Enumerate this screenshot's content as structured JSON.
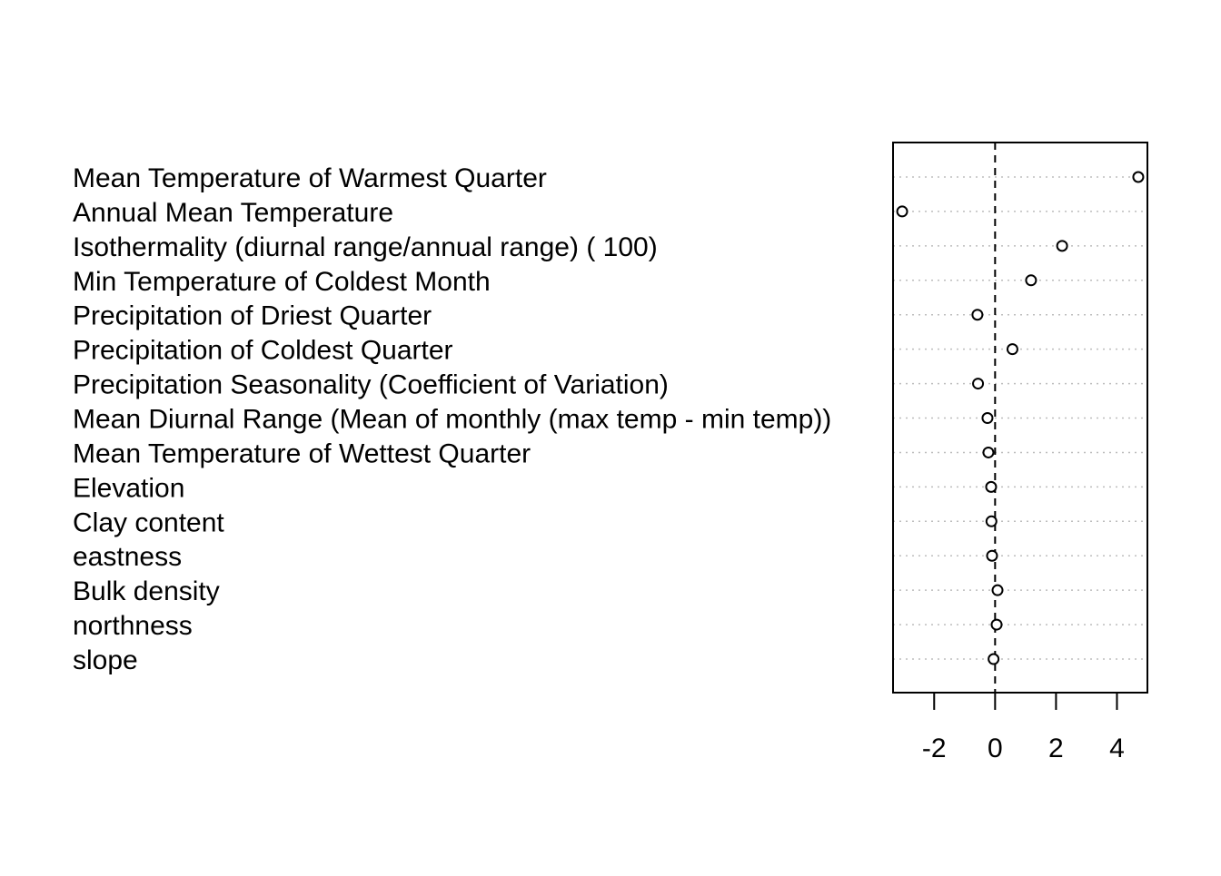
{
  "chart_data": {
    "type": "scatter",
    "title": "",
    "xlabel": "",
    "ylabel": "",
    "xlim": [
      -3.35,
      5.0
    ],
    "xticks": [
      -2,
      0,
      2,
      4
    ],
    "xtick_labels": [
      "-2",
      "0",
      "2",
      "4"
    ],
    "reference_line_x": 0,
    "grid": "horizontal dotted",
    "marker": "open-circle",
    "categories": [
      "Mean Temperature of Warmest Quarter",
      "Annual Mean Temperature",
      "Isothermality (diurnal range/annual range) (  100)",
      "Min Temperature of Coldest Month",
      "Precipitation of Driest Quarter",
      "Precipitation of Coldest Quarter",
      "Precipitation Seasonality (Coefficient of Variation)",
      "Mean Diurnal Range (Mean of monthly (max temp - min temp))",
      "Mean Temperature of Wettest Quarter",
      "Elevation",
      "Clay content",
      "eastness",
      "Bulk density",
      "northness",
      "slope"
    ],
    "values": [
      4.7,
      -3.05,
      2.2,
      1.18,
      -0.58,
      0.57,
      -0.56,
      -0.25,
      -0.22,
      -0.13,
      -0.12,
      -0.1,
      0.08,
      0.05,
      -0.05
    ]
  }
}
